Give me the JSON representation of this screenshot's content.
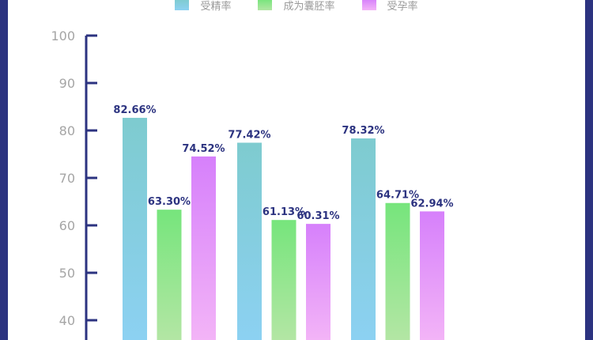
{
  "colors": {
    "frame": "#2c3380",
    "axis": "#2c3380",
    "tick_label": "#a5a5a5",
    "value_label": "#2c3380"
  },
  "chart_data": {
    "type": "bar",
    "categories": [
      "",
      "",
      ""
    ],
    "series": [
      {
        "name": "受精率",
        "values": [
          82.66,
          77.42,
          78.32
        ],
        "labels": [
          "82.66%",
          "77.42%",
          "78.32%"
        ],
        "color_top": "#7ecbcf",
        "color_bottom": "#8cd1f2"
      },
      {
        "name": "成为囊胚率",
        "values": [
          63.3,
          61.13,
          64.71
        ],
        "labels": [
          "63.30%",
          "61.13%",
          "64.71%"
        ],
        "color_top": "#76e57c",
        "color_bottom": "#b3e6a4"
      },
      {
        "name": "受孕率",
        "values": [
          74.52,
          60.31,
          62.94
        ],
        "labels": [
          "74.52%",
          "60.31%",
          "62.94%"
        ],
        "color_top": "#d680fb",
        "color_bottom": "#f3b4f7"
      }
    ],
    "y_ticks": [
      "100",
      "90",
      "80",
      "70",
      "60",
      "50",
      "40"
    ],
    "ylim": [
      40,
      100
    ],
    "legend": "top-center",
    "grid": false
  }
}
